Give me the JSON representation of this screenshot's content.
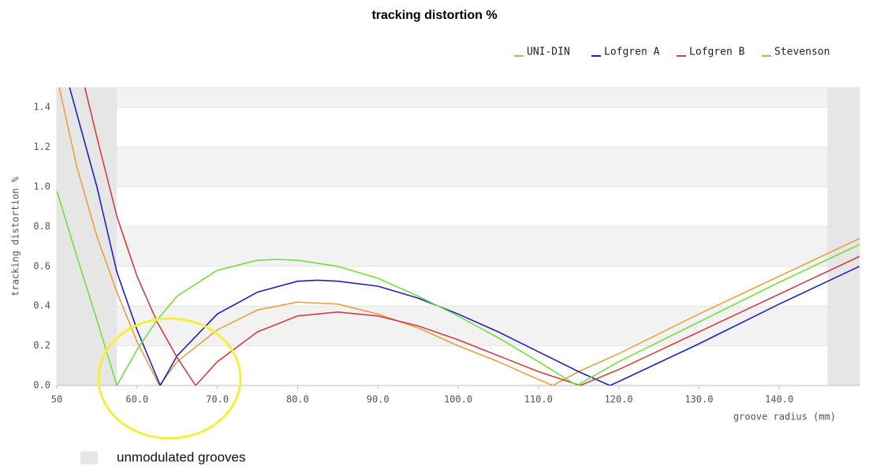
{
  "chart_data": {
    "type": "line",
    "title": "tracking distortion %",
    "xlabel": "groove radius (mm)",
    "ylabel": "tracking distortion %",
    "xlim": [
      50,
      150
    ],
    "ylim": [
      0,
      1.5
    ],
    "xticks": [
      50,
      {
        "value": 60,
        "label": "60.0"
      },
      {
        "value": 70,
        "label": "70.0"
      },
      {
        "value": 80,
        "label": "80.0"
      },
      {
        "value": 90,
        "label": "90.0"
      },
      {
        "value": 100,
        "label": "100.0"
      },
      {
        "value": 110,
        "label": "110.0"
      },
      {
        "value": 120,
        "label": "120.0"
      },
      {
        "value": 130,
        "label": "130.0"
      },
      {
        "value": 140,
        "label": "140.0"
      }
    ],
    "yticks": [
      {
        "value": 0,
        "label": "0.0"
      },
      {
        "value": 0.2,
        "label": "0.2"
      },
      {
        "value": 0.4,
        "label": "0.4"
      },
      {
        "value": 0.6,
        "label": "0.6"
      },
      {
        "value": 0.8,
        "label": "0.8"
      },
      {
        "value": 1,
        "label": "1.0"
      },
      {
        "value": 1.2,
        "label": "1.2"
      },
      {
        "value": 1.4,
        "label": "1.4"
      }
    ],
    "grid": true,
    "legend_position": "top-right",
    "shaded_label": "unmodulated grooves",
    "shaded_ranges": [
      [
        50,
        57.5
      ],
      [
        146,
        150
      ]
    ],
    "series": [
      {
        "name": "UNI-DIN",
        "color": "#e8a040",
        "x": [
          50.3,
          52.5,
          55,
          57.5,
          60,
          62.8,
          65,
          70,
          75,
          80,
          85,
          90,
          95,
          100,
          105,
          110,
          111.8,
          115,
          120,
          130,
          140,
          150
        ],
        "values": [
          1.5,
          1.1,
          0.75,
          0.47,
          0.22,
          0,
          0.12,
          0.28,
          0.38,
          0.42,
          0.41,
          0.36,
          0.29,
          0.2,
          0.12,
          0.03,
          0,
          0.07,
          0.16,
          0.36,
          0.55,
          0.74
        ]
      },
      {
        "name": "Lofgren A",
        "color": "#2020c0",
        "x": [
          51.6,
          55,
          57.5,
          60,
          62.9,
          65,
          70,
          75,
          80,
          82.5,
          85,
          90,
          95,
          100,
          105,
          110,
          115,
          118.9,
          120,
          130,
          140,
          150
        ],
        "values": [
          1.5,
          1.0,
          0.57,
          0.28,
          0,
          0.15,
          0.36,
          0.47,
          0.525,
          0.53,
          0.525,
          0.5,
          0.44,
          0.36,
          0.27,
          0.17,
          0.07,
          0,
          0.02,
          0.21,
          0.41,
          0.6
        ]
      },
      {
        "name": "Lofgren B",
        "color": "#d04040",
        "x": [
          53.5,
          55,
          57.5,
          60,
          62.5,
          65,
          67.3,
          70,
          75,
          80,
          85,
          90,
          95,
          100,
          105,
          110,
          115.2,
          120,
          130,
          140,
          150
        ],
        "values": [
          1.5,
          1.25,
          0.85,
          0.55,
          0.32,
          0.14,
          0,
          0.12,
          0.27,
          0.35,
          0.37,
          0.35,
          0.3,
          0.23,
          0.15,
          0.07,
          0,
          0.08,
          0.27,
          0.46,
          0.65
        ]
      },
      {
        "name": "Stevenson",
        "color": "#70e040",
        "x": [
          50,
          52.5,
          55,
          57.5,
          60,
          62.5,
          65,
          70,
          75,
          77.5,
          80,
          85,
          90,
          95,
          100,
          105,
          110,
          114.8,
          120,
          130,
          140,
          150
        ],
        "values": [
          0.98,
          0.65,
          0.33,
          0,
          0.18,
          0.33,
          0.45,
          0.58,
          0.63,
          0.635,
          0.63,
          0.6,
          0.54,
          0.45,
          0.35,
          0.24,
          0.12,
          0,
          0.12,
          0.32,
          0.52,
          0.71
        ]
      }
    ]
  }
}
